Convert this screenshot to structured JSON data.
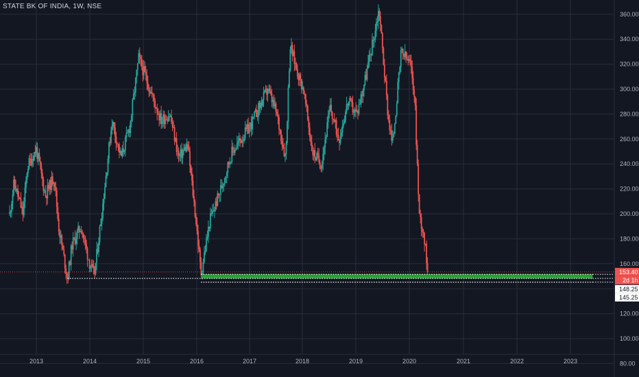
{
  "header": {
    "title": "STATE BK OF INDIA, 1W, NSE"
  },
  "colors": {
    "background": "#131722",
    "grid": "#2a2e39",
    "up": "#26a69a",
    "down": "#ef5350",
    "support_zone": "#22a32f",
    "price_tag": "#ef5350",
    "price_line": "#ef5350",
    "dotted_line": "#ffffff",
    "tag_dark": "#131722"
  },
  "chart_data": {
    "type": "candlestick",
    "title": "STATE BK OF INDIA, 1W, NSE",
    "x_tick_labels": [
      "2013",
      "2014",
      "2015",
      "2016",
      "2017",
      "2018",
      "2019",
      "2020",
      "2021",
      "2022",
      "2023"
    ],
    "y_tick_labels": [
      "80.00",
      "100.00",
      "120.00",
      "140.00",
      "160.00",
      "180.00",
      "200.00",
      "220.00",
      "240.00",
      "260.00",
      "280.00",
      "300.00",
      "320.00",
      "340.00",
      "360.00"
    ],
    "x_range": [
      "2012-06",
      "2024-01"
    ],
    "y_range": [
      80,
      370
    ],
    "grid": true,
    "price_series": [
      {
        "date": "2012-07",
        "value": 200
      },
      {
        "date": "2012-08",
        "value": 225
      },
      {
        "date": "2012-10",
        "value": 200
      },
      {
        "date": "2012-11",
        "value": 238
      },
      {
        "date": "2013-01",
        "value": 252
      },
      {
        "date": "2013-03",
        "value": 215
      },
      {
        "date": "2013-05",
        "value": 230
      },
      {
        "date": "2013-06",
        "value": 190
      },
      {
        "date": "2013-08",
        "value": 148
      },
      {
        "date": "2013-09",
        "value": 175
      },
      {
        "date": "2013-11",
        "value": 190
      },
      {
        "date": "2014-01",
        "value": 160
      },
      {
        "date": "2014-02",
        "value": 150
      },
      {
        "date": "2014-04",
        "value": 210
      },
      {
        "date": "2014-06",
        "value": 275
      },
      {
        "date": "2014-08",
        "value": 245
      },
      {
        "date": "2014-10",
        "value": 270
      },
      {
        "date": "2014-12",
        "value": 325
      },
      {
        "date": "2015-03",
        "value": 295
      },
      {
        "date": "2015-05",
        "value": 275
      },
      {
        "date": "2015-07",
        "value": 280
      },
      {
        "date": "2015-09",
        "value": 245
      },
      {
        "date": "2015-11",
        "value": 255
      },
      {
        "date": "2016-01",
        "value": 190
      },
      {
        "date": "2016-02",
        "value": 152
      },
      {
        "date": "2016-04",
        "value": 195
      },
      {
        "date": "2016-06",
        "value": 215
      },
      {
        "date": "2016-09",
        "value": 250
      },
      {
        "date": "2016-11",
        "value": 260
      },
      {
        "date": "2017-01",
        "value": 270
      },
      {
        "date": "2017-03",
        "value": 285
      },
      {
        "date": "2017-05",
        "value": 300
      },
      {
        "date": "2017-07",
        "value": 280
      },
      {
        "date": "2017-09",
        "value": 245
      },
      {
        "date": "2017-10",
        "value": 335
      },
      {
        "date": "2017-12",
        "value": 310
      },
      {
        "date": "2018-01",
        "value": 300
      },
      {
        "date": "2018-03",
        "value": 250
      },
      {
        "date": "2018-05",
        "value": 240
      },
      {
        "date": "2018-07",
        "value": 285
      },
      {
        "date": "2018-09",
        "value": 260
      },
      {
        "date": "2018-11",
        "value": 290
      },
      {
        "date": "2019-01",
        "value": 280
      },
      {
        "date": "2019-03",
        "value": 310
      },
      {
        "date": "2019-05",
        "value": 345
      },
      {
        "date": "2019-06",
        "value": 365
      },
      {
        "date": "2019-08",
        "value": 280
      },
      {
        "date": "2019-09",
        "value": 255
      },
      {
        "date": "2019-11",
        "value": 330
      },
      {
        "date": "2020-01",
        "value": 320
      },
      {
        "date": "2020-02",
        "value": 295
      },
      {
        "date": "2020-03",
        "value": 200
      },
      {
        "date": "2020-04",
        "value": 185
      },
      {
        "date": "2020-05",
        "value": 153.4
      }
    ],
    "last_price": {
      "value": 153.4,
      "label": "153.40"
    },
    "price_tags": [
      {
        "value": 148.25,
        "label": "148.25"
      },
      {
        "value": 145.25,
        "label": "145.25"
      }
    ],
    "countdown_tag": {
      "label": "2d 1h"
    },
    "support_zone": {
      "from": "2016-02",
      "to": "2023-06",
      "y_low": 148.25,
      "y_high": 151.5
    },
    "dotted_lines": [
      {
        "from": "2013-08",
        "to": "2023-06",
        "value": 148.25
      },
      {
        "from": "2016-02",
        "to": "2023-06",
        "value": 151.5
      },
      {
        "from": "2016-02",
        "to": "2023-06",
        "value": 145.25
      }
    ]
  }
}
